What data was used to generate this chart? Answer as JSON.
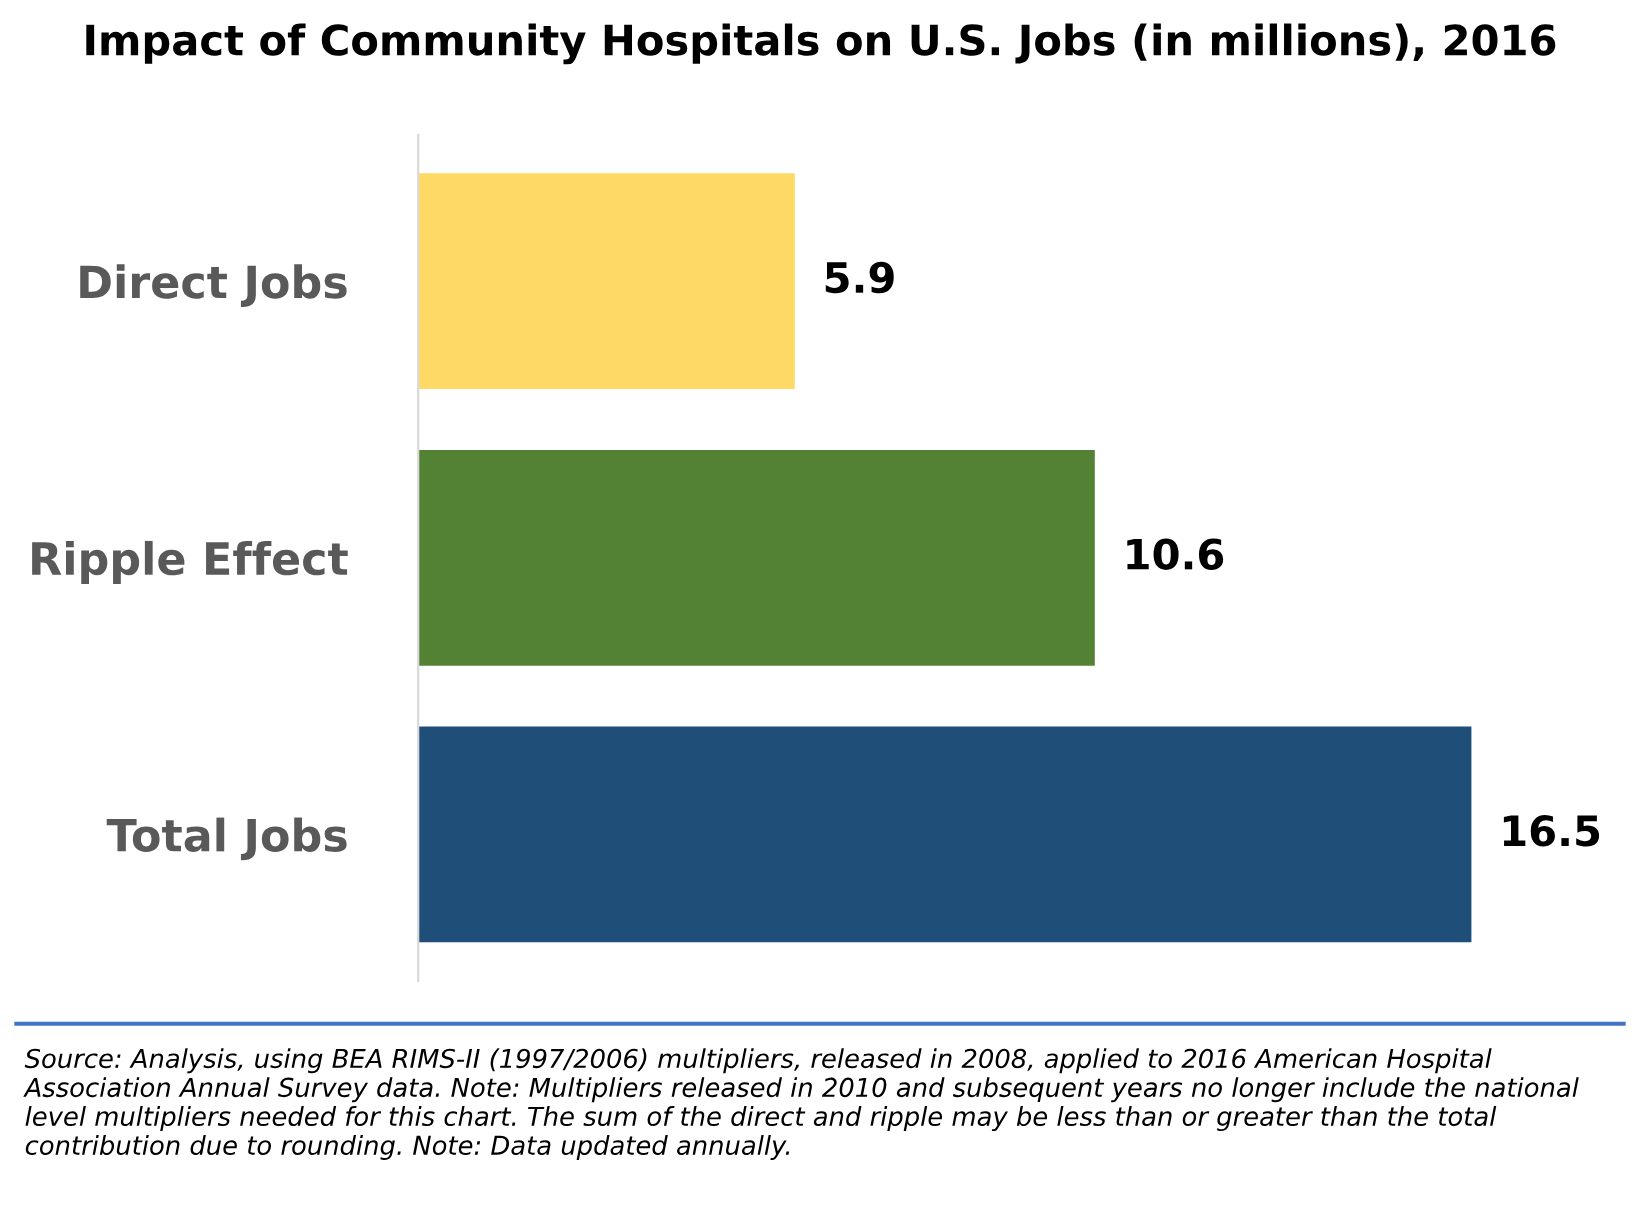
{
  "chart_data": {
    "type": "bar",
    "orientation": "horizontal",
    "title": "Impact of Community Hospitals on U.S. Jobs (in millions), 2016",
    "categories": [
      "Direct Jobs",
      "Ripple Effect",
      "Total Jobs"
    ],
    "values": [
      5.9,
      10.6,
      16.5
    ],
    "colors": [
      "#ffd966",
      "#548235",
      "#1f4e79"
    ],
    "data_labels": true,
    "grid": false,
    "legend": false,
    "tick_labels": "y",
    "annotations": [
      "Source: Analysis, using BEA RIMS-II (1997/2006) multipliers, released in 2008, applied to 2016 American Hospital Association Annual Survey data. Note: Multipliers released in 2010 and subsequent years no longer include the national level multipliers needed for this chart. The sum of the direct and ripple may be less than or greater than the total contribution due to rounding. Note: Data updated annually."
    ]
  }
}
